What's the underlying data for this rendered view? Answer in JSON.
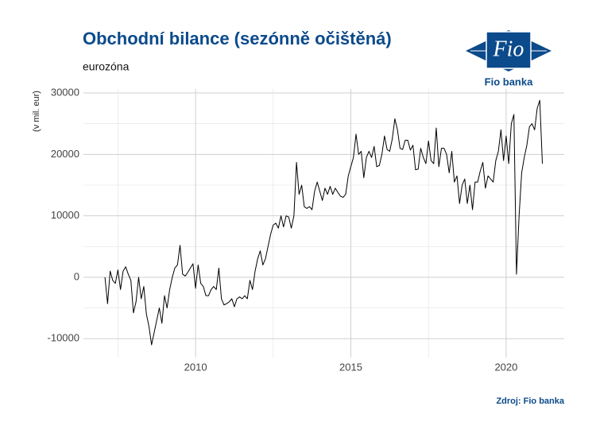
{
  "chart_data": {
    "type": "line",
    "title": "Obchodní bilance (sezónně očištěná)",
    "subtitle": "eurozóna",
    "y_label": "(v mil. eur)",
    "source": "Zdroj: Fio banka",
    "logo_text": "Fio",
    "logo_caption": "Fio banka",
    "color": "#000000",
    "grid": true,
    "xlim": [
      2006.39,
      2021.87
    ],
    "xticks": [
      2010,
      2015,
      2020
    ],
    "xminor_ticks": [
      2007.5,
      2012.5,
      2017.5
    ],
    "ylim": [
      -13070,
      30650
    ],
    "yticks": [
      -10000,
      0,
      10000,
      20000,
      30000
    ],
    "yminor_ticks": [
      -5000,
      5000,
      15000,
      25000
    ],
    "x": [
      2007.083,
      2007.167,
      2007.25,
      2007.333,
      2007.417,
      2007.5,
      2007.583,
      2007.667,
      2007.75,
      2007.833,
      2007.917,
      2008.0,
      2008.083,
      2008.167,
      2008.25,
      2008.333,
      2008.417,
      2008.5,
      2008.583,
      2008.667,
      2008.75,
      2008.833,
      2008.917,
      2009.0,
      2009.083,
      2009.167,
      2009.25,
      2009.333,
      2009.417,
      2009.5,
      2009.583,
      2009.667,
      2009.75,
      2009.833,
      2009.917,
      2010.0,
      2010.083,
      2010.167,
      2010.25,
      2010.333,
      2010.417,
      2010.5,
      2010.583,
      2010.667,
      2010.75,
      2010.833,
      2010.917,
      2011.0,
      2011.083,
      2011.167,
      2011.25,
      2011.333,
      2011.417,
      2011.5,
      2011.583,
      2011.667,
      2011.75,
      2011.833,
      2011.917,
      2012.0,
      2012.083,
      2012.167,
      2012.25,
      2012.333,
      2012.417,
      2012.5,
      2012.583,
      2012.667,
      2012.75,
      2012.833,
      2012.917,
      2013.0,
      2013.083,
      2013.167,
      2013.25,
      2013.333,
      2013.417,
      2013.5,
      2013.583,
      2013.667,
      2013.75,
      2013.833,
      2013.917,
      2014.0,
      2014.083,
      2014.167,
      2014.25,
      2014.333,
      2014.417,
      2014.5,
      2014.583,
      2014.667,
      2014.75,
      2014.833,
      2014.917,
      2015.0,
      2015.083,
      2015.167,
      2015.25,
      2015.333,
      2015.417,
      2015.5,
      2015.583,
      2015.667,
      2015.75,
      2015.833,
      2015.917,
      2016.0,
      2016.083,
      2016.167,
      2016.25,
      2016.333,
      2016.417,
      2016.5,
      2016.583,
      2016.667,
      2016.75,
      2016.833,
      2016.917,
      2017.0,
      2017.083,
      2017.167,
      2017.25,
      2017.333,
      2017.417,
      2017.5,
      2017.583,
      2017.667,
      2017.75,
      2017.833,
      2017.917,
      2018.0,
      2018.083,
      2018.167,
      2018.25,
      2018.333,
      2018.417,
      2018.5,
      2018.583,
      2018.667,
      2018.75,
      2018.833,
      2018.917,
      2019.0,
      2019.083,
      2019.167,
      2019.25,
      2019.333,
      2019.417,
      2019.5,
      2019.583,
      2019.667,
      2019.75,
      2019.833,
      2019.917,
      2020.0,
      2020.083,
      2020.167,
      2020.25,
      2020.333,
      2020.417,
      2020.5,
      2020.583,
      2020.667,
      2020.75,
      2020.833,
      2020.917,
      2021.0,
      2021.083,
      2021.167
    ],
    "values": [
      0,
      -4300,
      1000,
      -500,
      -1000,
      1200,
      -2000,
      1000,
      1700,
      500,
      -500,
      -5800,
      -4000,
      0,
      -3500,
      -1500,
      -6000,
      -8000,
      -11000,
      -9000,
      -7000,
      -5000,
      -7500,
      -3000,
      -5000,
      -2000,
      0,
      1500,
      2000,
      5200,
      500,
      200,
      800,
      1500,
      2200,
      -1800,
      2000,
      -1000,
      -1500,
      -3000,
      -3000,
      -2000,
      -1500,
      -2000,
      1500,
      -3500,
      -4500,
      -4300,
      -4000,
      -3500,
      -4800,
      -3500,
      -3200,
      -3500,
      -3000,
      -3500,
      -500,
      -2000,
      1000,
      3000,
      4300,
      2000,
      3000,
      5000,
      7000,
      8500,
      8800,
      8000,
      10000,
      8200,
      10000,
      9800,
      8000,
      10000,
      18700,
      13500,
      15000,
      11500,
      11200,
      11500,
      11000,
      14000,
      15500,
      14000,
      12500,
      14500,
      13500,
      14800,
      13500,
      14500,
      13800,
      13200,
      13000,
      13500,
      16500,
      18000,
      19500,
      23300,
      20000,
      20500,
      16200,
      19500,
      20500,
      19500,
      21300,
      18000,
      18200,
      20000,
      23000,
      20800,
      20500,
      22500,
      25800,
      24000,
      21000,
      20800,
      22300,
      22300,
      20700,
      21500,
      17500,
      17600,
      21000,
      19500,
      18500,
      22200,
      19000,
      18500,
      24300,
      18000,
      21000,
      21000,
      20000,
      17000,
      20500,
      15500,
      16500,
      12000,
      15000,
      16000,
      12000,
      15000,
      11000,
      15500,
      15500,
      17300,
      18700,
      14500,
      16500,
      16000,
      15500,
      19000,
      20500,
      24000,
      19000,
      23000,
      18500,
      25000,
      26500,
      500,
      10000,
      17000,
      19500,
      21500,
      24500,
      25000,
      24000,
      27500,
      28800,
      18500
    ]
  }
}
